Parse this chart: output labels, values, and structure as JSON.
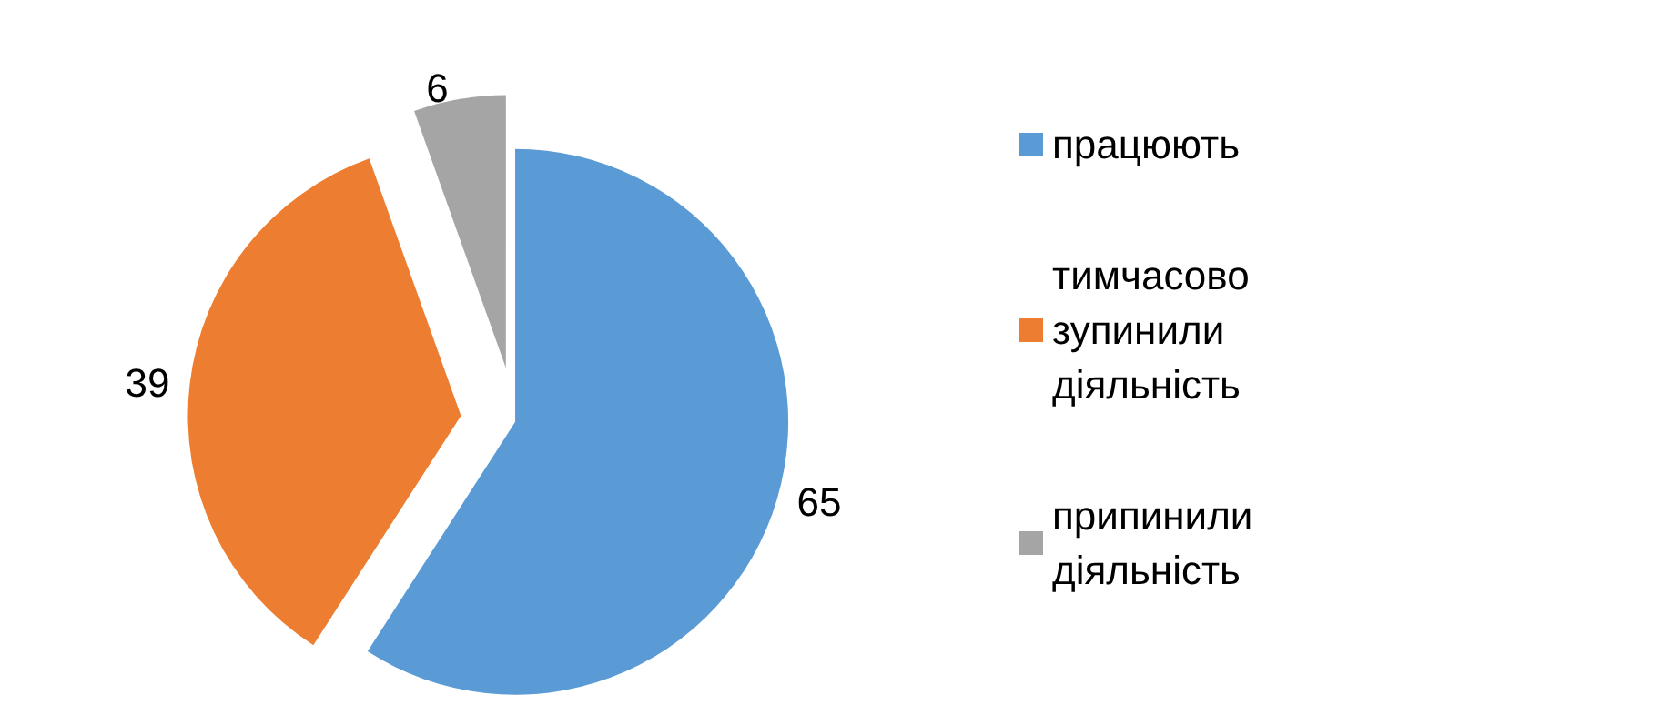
{
  "chart_data": {
    "type": "pie",
    "categories": [
      "працюють",
      "тимчасово зупинили діяльність",
      "припинили діяльність"
    ],
    "values": [
      65,
      39,
      6
    ],
    "colors": [
      "#5b9bd5",
      "#ed7d31",
      "#a5a5a5"
    ],
    "data_labels": true,
    "legend": "right"
  }
}
